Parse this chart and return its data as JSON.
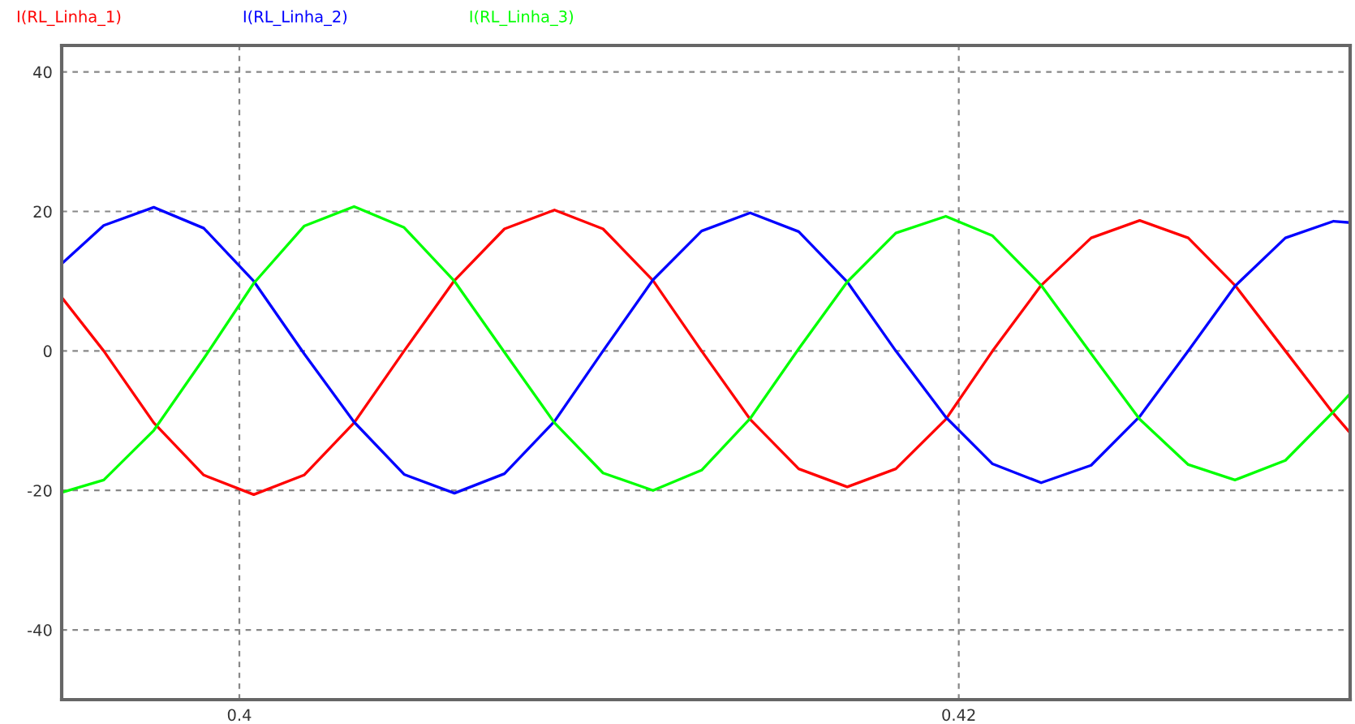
{
  "chart_data": {
    "type": "line",
    "x": [
      0.39506,
      0.39623,
      0.39762,
      0.39901,
      0.4004,
      0.4018,
      0.40319,
      0.40458,
      0.40598,
      0.40737,
      0.40876,
      0.41011,
      0.4115,
      0.41285,
      0.4142,
      0.41555,
      0.4169,
      0.41825,
      0.41964,
      0.42094,
      0.42229,
      0.42368,
      0.42503,
      0.42638,
      0.42768,
      0.42908,
      0.43042,
      0.43087
    ],
    "series": [
      {
        "name": "I(RL_Linha_1)",
        "color": "#ff0000",
        "values": [
          7.7,
          0,
          -10.3,
          -17.8,
          -20.6,
          -17.8,
          -10.3,
          0,
          10.1,
          17.5,
          20.2,
          17.5,
          10.1,
          0,
          -9.8,
          -16.9,
          -19.5,
          -16.9,
          -9.8,
          0,
          9.4,
          16.2,
          18.7,
          16.2,
          9.4,
          0,
          -9.0,
          -11.7
        ]
      },
      {
        "name": "I(RL_Linha_2)",
        "color": "#0000ff",
        "values": [
          12.5,
          18.0,
          20.6,
          17.6,
          10.0,
          -0.4,
          -10.2,
          -17.7,
          -20.4,
          -17.6,
          -10.1,
          0,
          10.2,
          17.2,
          19.8,
          17.1,
          9.9,
          0,
          -9.5,
          -16.2,
          -18.9,
          -16.4,
          -9.4,
          0,
          9.3,
          16.2,
          18.6,
          18.4
        ]
      },
      {
        "name": "I(RL_Linha_3)",
        "color": "#00ff00",
        "values": [
          -20.3,
          -18.5,
          -11.4,
          -1.1,
          9.7,
          17.9,
          20.7,
          17.7,
          10.0,
          -0.2,
          -10.3,
          -17.5,
          -20.0,
          -17.1,
          -9.7,
          0.3,
          9.9,
          16.9,
          19.3,
          16.5,
          9.4,
          -0.4,
          -9.8,
          -16.3,
          -18.5,
          -15.7,
          -8.7,
          -6.2
        ]
      }
    ],
    "xlim": [
      0.39506,
      0.43088
    ],
    "ylim": [
      -50,
      43.8
    ],
    "xticks": [
      0.4,
      0.42
    ],
    "yticks": [
      -40,
      -20,
      0,
      20,
      40
    ],
    "grid": true,
    "legend": "top left",
    "line_style": "solid",
    "marker": "none"
  }
}
